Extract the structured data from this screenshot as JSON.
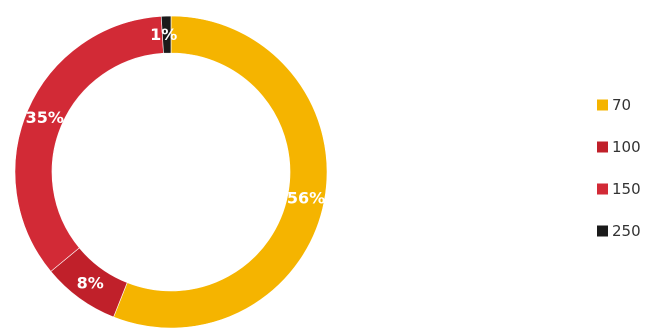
{
  "chart_data": {
    "type": "pie",
    "variant": "donut",
    "title": "",
    "categories": [
      "70",
      "100",
      "150",
      "250"
    ],
    "values": [
      56,
      8,
      35,
      1
    ],
    "labels": [
      "56%",
      "8%",
      "35%",
      "1%"
    ],
    "colors": [
      "#F5B400",
      "#C0202A",
      "#D22A36",
      "#1A1A1A"
    ],
    "legend": {
      "position": "right",
      "entries": [
        "70",
        "100",
        "150",
        "250"
      ]
    },
    "start": "top",
    "direction": "clockwise"
  }
}
